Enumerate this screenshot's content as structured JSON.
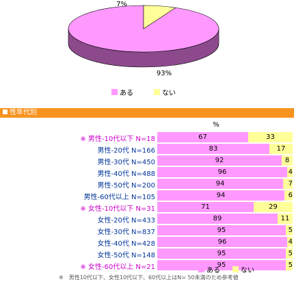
{
  "colors": {
    "aru": "#ff99ff",
    "nai": "#ffff99",
    "pie_side_aru": "#8c4a8c",
    "pie_side_nai": "#b7b76a",
    "header_bg": "#f7931e",
    "label_normal": "#003399",
    "label_ref": "#cc00cc"
  },
  "chart_data": [
    {
      "type": "pie",
      "categories": [
        "ある",
        "ない"
      ],
      "values": [
        93,
        7
      ],
      "data_labels": [
        "93%",
        "7%"
      ],
      "legend": [
        "ある",
        "ない"
      ]
    },
    {
      "type": "bar",
      "stacked": true,
      "orientation": "horizontal",
      "axis_unit": "%",
      "categories": [
        "※ 男性-10代以下 N=18",
        "男性-20代 N=166",
        "男性-30代 N=450",
        "男性-40代 N=488",
        "男性-50代 N=200",
        "男性-60代以上 N=105",
        "※ 女性-10代以下 N=31",
        "女性-20代 N=433",
        "女性-30代 N=837",
        "女性-40代 N=428",
        "女性-50代 N=148",
        "※ 女性-60代以上 N=21"
      ],
      "reference_rows": [
        true,
        false,
        false,
        false,
        false,
        false,
        true,
        false,
        false,
        false,
        false,
        true
      ],
      "series": [
        {
          "name": "ある",
          "values": [
            67,
            83,
            92,
            96,
            94,
            94,
            71,
            89,
            95,
            96,
            95,
            95
          ]
        },
        {
          "name": "ない",
          "values": [
            33,
            17,
            8,
            4,
            7,
            6,
            29,
            11,
            5,
            4,
            5,
            5
          ]
        }
      ],
      "legend": [
        "ある",
        "ない"
      ]
    }
  ],
  "section_title": "性年代別",
  "footnote": "※　男性10代以下、女性10代以下、60代以上はN= 50未満のため参考値"
}
